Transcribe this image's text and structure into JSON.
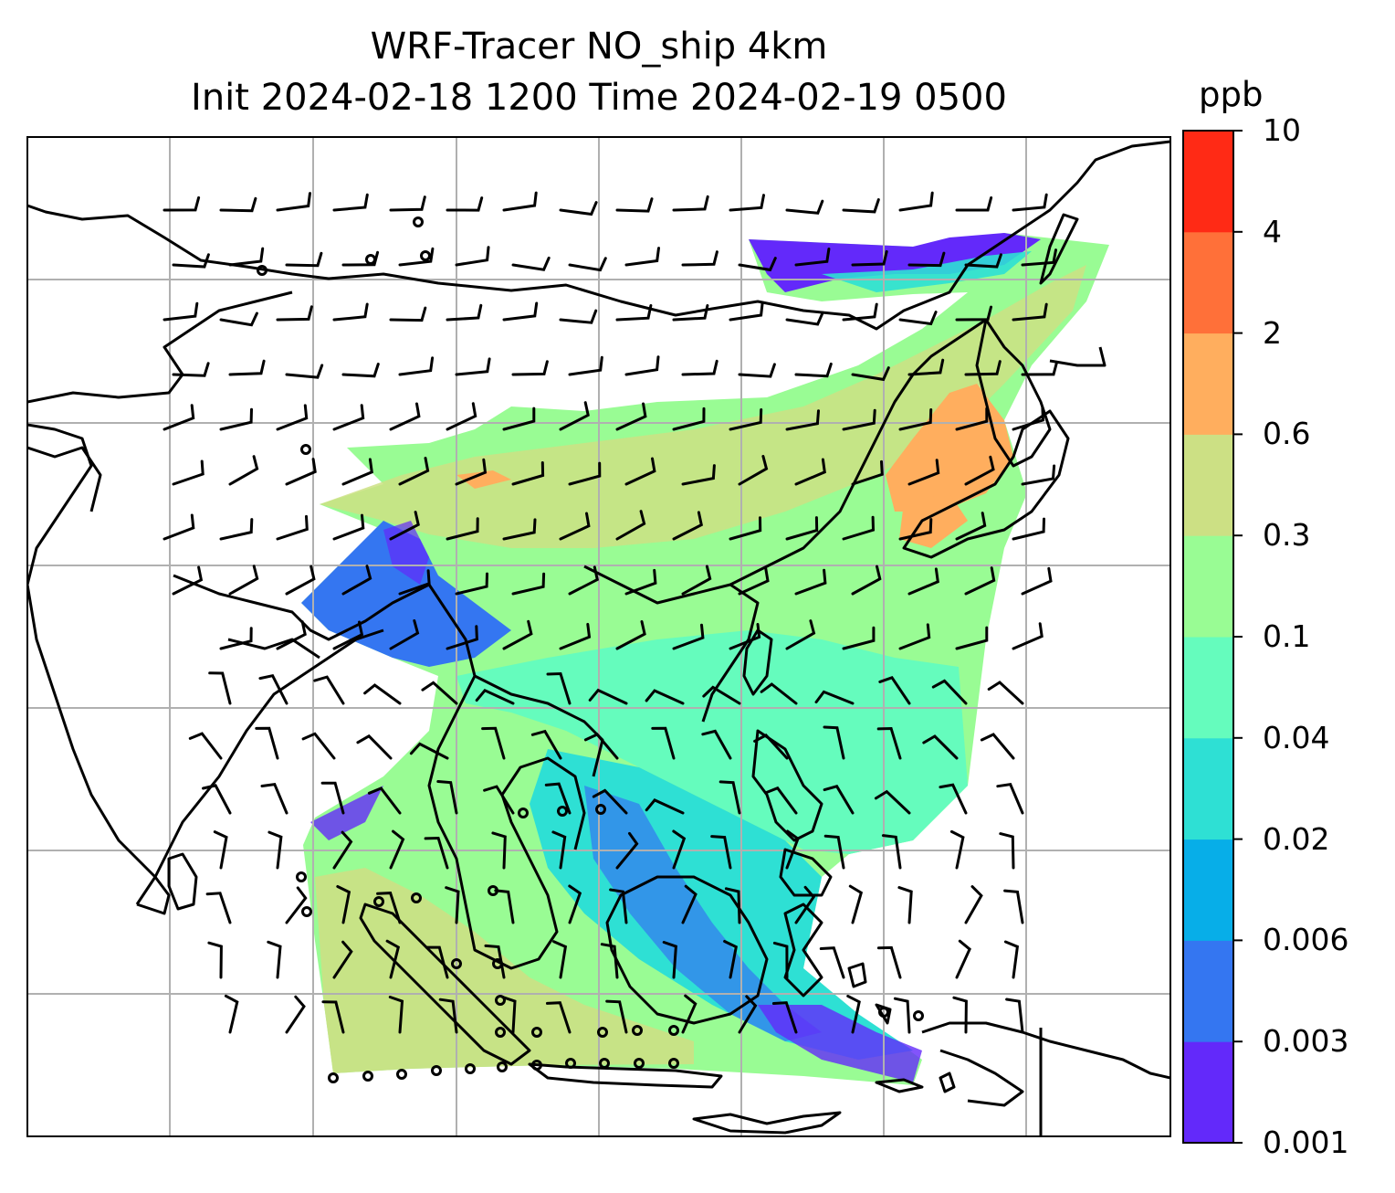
{
  "title": {
    "line1": "WRF-Tracer NO_ship 4km",
    "line2": "Init 2024-02-18 1200 Time 2024-02-19 0500"
  },
  "colorbar": {
    "unit": "ppb",
    "levels": [
      "0.001",
      "0.003",
      "0.006",
      "0.02",
      "0.04",
      "0.1",
      "0.3",
      "0.6",
      "2",
      "4",
      "10"
    ],
    "colors": [
      "#6329fa",
      "#3476f1",
      "#07aee8",
      "#2ee0d4",
      "#65fcbd",
      "#99fc94",
      "#cce084",
      "#ffae5e",
      "#ff7039",
      "#ff2a15"
    ]
  },
  "map": {
    "variable": "NO_ship tracer concentration with wind barbs",
    "gridlines": true,
    "coastline_color": "#000000",
    "gridline_color": "#b0b0b0"
  }
}
